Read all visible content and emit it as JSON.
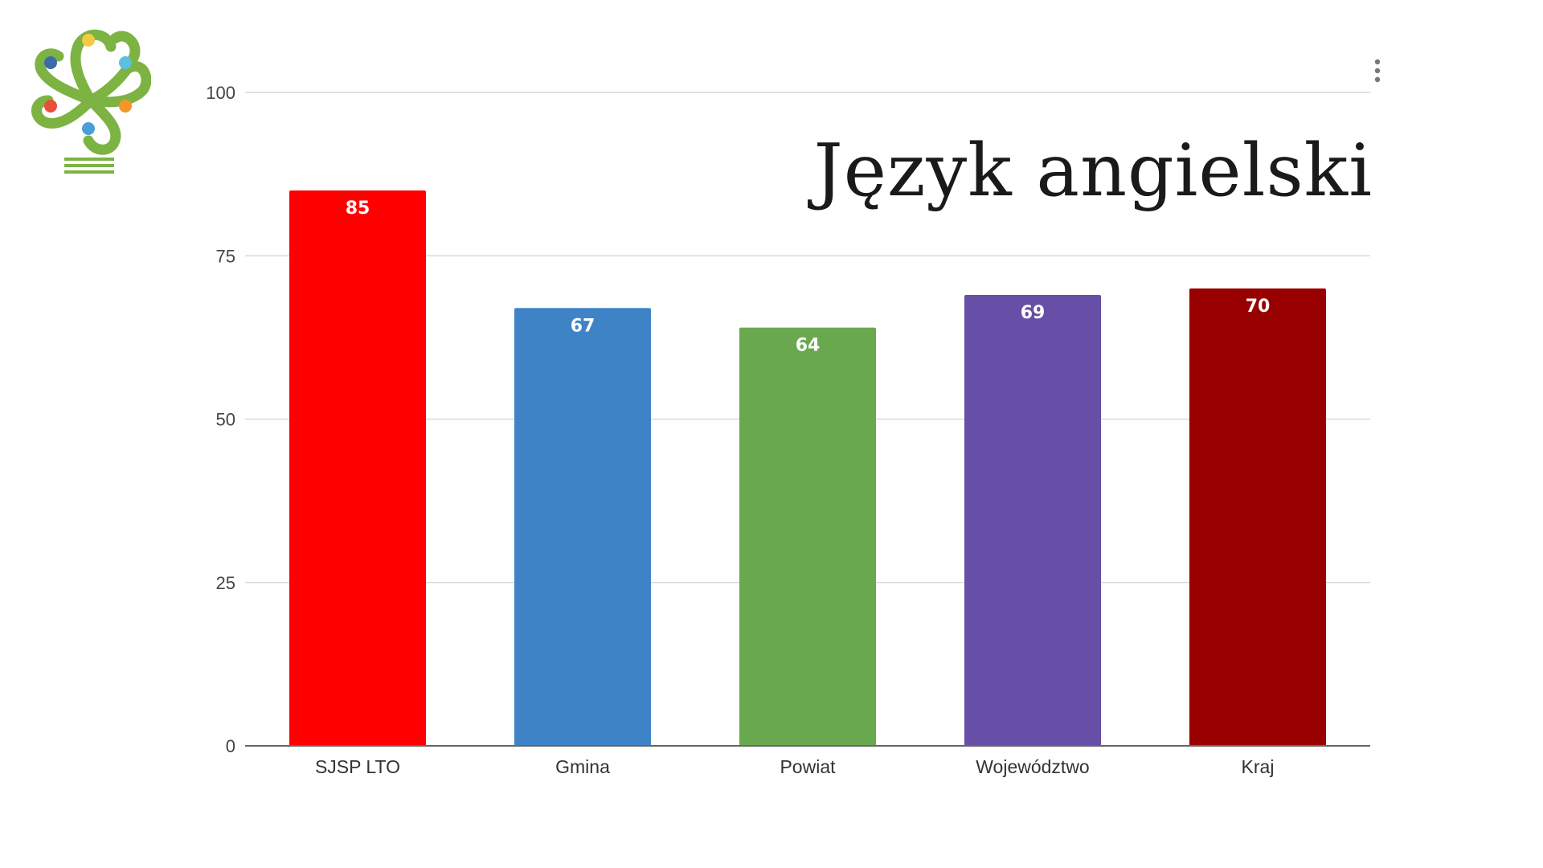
{
  "title": "Język angielski",
  "chart_data": {
    "type": "bar",
    "title": "Język angielski",
    "categories": [
      "SJSP LTO",
      "Gmina",
      "Powiat",
      "Województwo",
      "Kraj"
    ],
    "values": [
      85,
      67,
      64,
      69,
      70
    ],
    "colors": [
      "#ff0000",
      "#3f83c7",
      "#6aa84f",
      "#674ea7",
      "#990000"
    ],
    "ylim": [
      0,
      100
    ],
    "yticks": [
      0,
      25,
      50,
      75,
      100
    ],
    "grid": true,
    "data_labels": true,
    "xlabel": "",
    "ylabel": ""
  },
  "icons": {
    "logo": "flower-logo-icon",
    "menu": "more-vert-icon"
  },
  "logo_colors": {
    "green": "#7cb342",
    "dots": [
      "#f6c945",
      "#5bc0de",
      "#f5962b",
      "#4a9fd6",
      "#e84e3c",
      "#3d6ba8"
    ]
  }
}
